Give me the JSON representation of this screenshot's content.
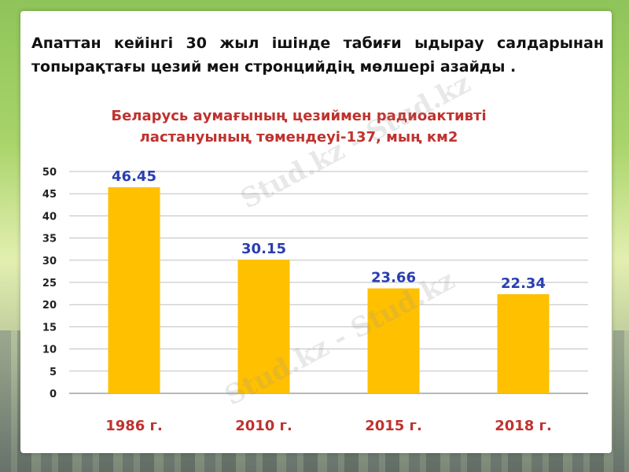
{
  "headline": "Апаттан кейінгі 30 жыл ішінде табиғи ыдырау салдарынан топырақтағы цезий мен стронцийдің мөлшері азайды .",
  "watermark": "Stud.kz - Stud.kz",
  "colors": {
    "bar": "#ffc000",
    "value_label": "#2a3eb1",
    "category_label": "#c0322e",
    "title": "#c0322e"
  },
  "chart_data": {
    "type": "bar",
    "title": "Беларусь аумағының цезиймен радиоактивті ластануының төмендеуі-137, мың км2",
    "categories": [
      "1986 г.",
      "2010 г.",
      "2015 г.",
      "2018 г."
    ],
    "values": [
      46.45,
      30.15,
      23.66,
      22.34
    ],
    "value_labels": [
      "46.45",
      "30.15",
      "23.66",
      "22.34"
    ],
    "yticks": [
      "0",
      "5",
      "10",
      "15",
      "20",
      "25",
      "30",
      "35",
      "40",
      "45",
      "50"
    ],
    "ylim": [
      0,
      50
    ],
    "ystep": 5,
    "grid": true,
    "legend": "none"
  }
}
